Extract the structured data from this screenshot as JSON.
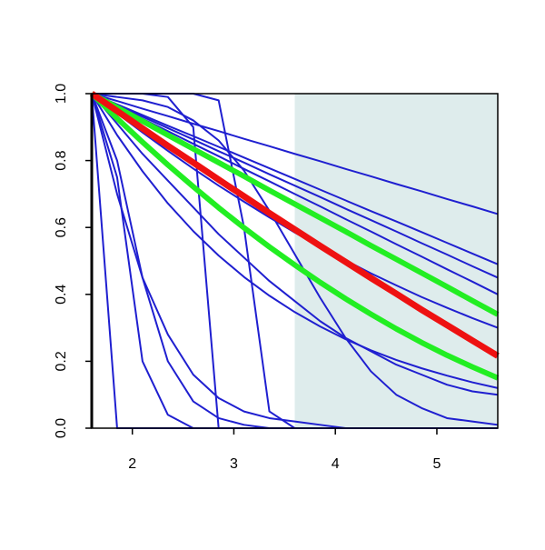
{
  "chart_data": {
    "type": "line",
    "x": [
      1.6,
      1.85,
      2.1,
      2.35,
      2.6,
      2.85,
      3.1,
      3.35,
      3.6,
      3.85,
      4.1,
      4.35,
      4.6,
      4.85,
      5.1,
      5.35,
      5.6
    ],
    "xlim": [
      1.6,
      5.6
    ],
    "xticks": [
      2,
      3,
      4,
      5
    ],
    "ylim": [
      0,
      1
    ],
    "yticks": [
      {
        "value": 0,
        "label": "0.0"
      },
      {
        "value": 0.2,
        "label": "0.2"
      },
      {
        "value": 0.4,
        "label": "0.4"
      },
      {
        "value": 0.6,
        "label": "0.6"
      },
      {
        "value": 0.8,
        "label": "0.8"
      },
      {
        "value": 1,
        "label": "1.0"
      }
    ],
    "highlight_xrange": [
      3.6,
      5.6
    ],
    "highlight_color": "#deecec",
    "series": [
      {
        "color": "#1f1fd0",
        "width": 2,
        "values": [
          1,
          0.978,
          0.955,
          0.933,
          0.91,
          0.888,
          0.865,
          0.843,
          0.82,
          0.798,
          0.775,
          0.753,
          0.73,
          0.708,
          0.685,
          0.663,
          0.64
        ]
      },
      {
        "color": "#1f1fd0",
        "width": 2,
        "values": [
          1,
          0.968,
          0.936,
          0.904,
          0.873,
          0.841,
          0.809,
          0.777,
          0.745,
          0.713,
          0.681,
          0.649,
          0.618,
          0.586,
          0.554,
          0.522,
          0.49
        ]
      },
      {
        "color": "#1f1fd0",
        "width": 2,
        "values": [
          1,
          0.966,
          0.931,
          0.897,
          0.863,
          0.828,
          0.794,
          0.759,
          0.725,
          0.691,
          0.656,
          0.622,
          0.588,
          0.553,
          0.519,
          0.484,
          0.45
        ]
      },
      {
        "color": "#1f1fd0",
        "width": 2,
        "values": [
          1,
          0.963,
          0.925,
          0.888,
          0.85,
          0.813,
          0.775,
          0.738,
          0.7,
          0.663,
          0.625,
          0.588,
          0.55,
          0.513,
          0.475,
          0.438,
          0.4
        ]
      },
      {
        "color": "#1f1fd0",
        "width": 2,
        "values": [
          1,
          0.941,
          0.884,
          0.829,
          0.776,
          0.725,
          0.677,
          0.63,
          0.585,
          0.543,
          0.502,
          0.463,
          0.427,
          0.392,
          0.36,
          0.329,
          0.3
        ]
      },
      {
        "color": "#1f1fd0",
        "width": 2,
        "values": [
          1,
          0.876,
          0.768,
          0.672,
          0.589,
          0.516,
          0.452,
          0.396,
          0.347,
          0.304,
          0.266,
          0.233,
          0.204,
          0.179,
          0.157,
          0.137,
          0.12
        ]
      },
      {
        "color": "#1f1fd0",
        "width": 2,
        "values": [
          1,
          0.91,
          0.82,
          0.74,
          0.66,
          0.58,
          0.51,
          0.44,
          0.38,
          0.32,
          0.27,
          0.23,
          0.19,
          0.16,
          0.13,
          0.11,
          0.1
        ]
      },
      {
        "color": "#1f1fd0",
        "width": 2,
        "values": [
          1,
          0.99,
          0.98,
          0.96,
          0.92,
          0.86,
          0.77,
          0.65,
          0.52,
          0.39,
          0.27,
          0.17,
          0.1,
          0.06,
          0.03,
          0.02,
          0.01
        ]
      },
      {
        "color": "#1f1fd0",
        "width": 2,
        "values": [
          1,
          0,
          0,
          0,
          0,
          0,
          0,
          0,
          0,
          0,
          0,
          0,
          0,
          0,
          0,
          0,
          0
        ]
      },
      {
        "color": "#1f1fd0",
        "width": 2,
        "values": [
          1,
          0.75,
          0.2,
          0.04,
          0,
          0,
          0,
          0,
          0,
          0,
          0,
          0,
          0,
          0,
          0,
          0,
          0
        ]
      },
      {
        "color": "#1f1fd0",
        "width": 2,
        "values": [
          1,
          0.8,
          0.45,
          0.2,
          0.08,
          0.03,
          0.01,
          0,
          0,
          0,
          0,
          0,
          0,
          0,
          0,
          0,
          0
        ]
      },
      {
        "color": "#1f1fd0",
        "width": 2,
        "values": [
          1,
          1,
          1,
          0.99,
          0.9,
          0,
          0,
          0,
          0,
          0,
          0,
          0,
          0,
          0,
          0,
          0,
          0
        ]
      },
      {
        "color": "#1f1fd0",
        "width": 2,
        "values": [
          1,
          1,
          1,
          1,
          1,
          0.98,
          0.6,
          0.05,
          0,
          0,
          0,
          0,
          0,
          0,
          0,
          0,
          0
        ]
      },
      {
        "color": "#1f1fd0",
        "width": 2,
        "values": [
          1,
          0.7,
          0.45,
          0.28,
          0.16,
          0.09,
          0.05,
          0.03,
          0.02,
          0.01,
          0,
          0,
          0,
          0,
          0,
          0,
          0
        ]
      },
      {
        "color": "#22ee22",
        "width": 6,
        "values": [
          1,
          0.959,
          0.918,
          0.876,
          0.835,
          0.794,
          0.753,
          0.711,
          0.67,
          0.629,
          0.588,
          0.546,
          0.505,
          0.464,
          0.423,
          0.381,
          0.34
        ]
      },
      {
        "color": "#22ee22",
        "width": 6,
        "values": [
          1,
          0.926,
          0.855,
          0.787,
          0.722,
          0.659,
          0.599,
          0.542,
          0.488,
          0.436,
          0.387,
          0.341,
          0.297,
          0.256,
          0.218,
          0.183,
          0.15
        ]
      },
      {
        "color": "#ee1111",
        "width": 7,
        "values": [
          1,
          0.948,
          0.896,
          0.844,
          0.794,
          0.743,
          0.693,
          0.643,
          0.594,
          0.545,
          0.497,
          0.449,
          0.402,
          0.354,
          0.308,
          0.262,
          0.216
        ]
      }
    ]
  }
}
